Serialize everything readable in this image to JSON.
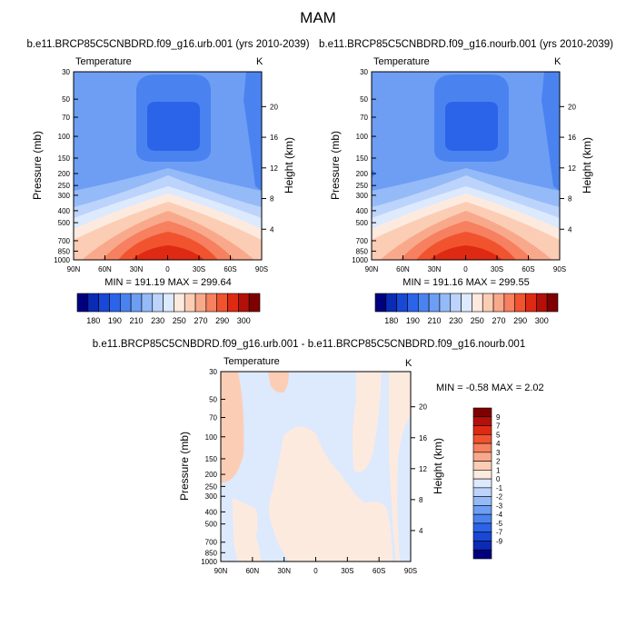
{
  "main_title": "MAM",
  "colors": {
    "abs": [
      "#00007f",
      "#0a2bb4",
      "#1947d6",
      "#2b64e8",
      "#4a83f0",
      "#6d9ef4",
      "#95baf8",
      "#bcd4fb",
      "#dde9fd",
      "#fdeadf",
      "#fccdb5",
      "#f9a98b",
      "#f6805f",
      "#f1532f",
      "#de2a12",
      "#b4100a",
      "#7f0000"
    ],
    "diff": [
      "#00007f",
      "#0a2bb4",
      "#1947d6",
      "#2b64e8",
      "#4a83f0",
      "#6d9ef4",
      "#95baf8",
      "#bcd4fb",
      "#dde9fd",
      "#fdeadf",
      "#fccdb5",
      "#f9a98b",
      "#f6805f",
      "#f1532f",
      "#de2a12",
      "#b4100a",
      "#7f0000"
    ]
  },
  "chart_data": [
    {
      "type": "heatmap",
      "panel": "urb",
      "title": "b.e11.BRCP85C5CNBDRD.f09_g16.urb.001 (yrs 2010-2039)",
      "left_label": "Temperature",
      "right_label": "K",
      "ylabel": "Pressure (mb)",
      "ylabel_right": "Height (km)",
      "yticks": [
        "30",
        "50",
        "70",
        "100",
        "150",
        "200",
        "250",
        "300",
        "400",
        "500",
        "700",
        "850",
        "1000"
      ],
      "right_ticks": [
        "20",
        "16",
        "12",
        "8",
        "4"
      ],
      "xticks": [
        "90N",
        "60N",
        "30N",
        "0",
        "30S",
        "60S",
        "90S"
      ],
      "stats": "MIN = 191.19   MAX = 299.64",
      "colorbar_labels": [
        "180",
        "190",
        "210",
        "230",
        "250",
        "270",
        "290",
        "300"
      ]
    },
    {
      "type": "heatmap",
      "panel": "nourb",
      "title": "b.e11.BRCP85C5CNBDRD.f09_g16.nourb.001 (yrs 2010-2039)",
      "left_label": "Temperature",
      "right_label": "K",
      "ylabel": "Pressure (mb)",
      "ylabel_right": "Height (km)",
      "yticks": [
        "30",
        "50",
        "70",
        "100",
        "150",
        "200",
        "250",
        "300",
        "400",
        "500",
        "700",
        "850",
        "1000"
      ],
      "right_ticks": [
        "20",
        "16",
        "12",
        "8",
        "4"
      ],
      "xticks": [
        "90N",
        "60N",
        "30N",
        "0",
        "30S",
        "60S",
        "90S"
      ],
      "stats": "MIN = 191.16   MAX = 299.55",
      "colorbar_labels": [
        "180",
        "190",
        "210",
        "230",
        "250",
        "270",
        "290",
        "300"
      ]
    },
    {
      "type": "heatmap",
      "panel": "diff",
      "title": "b.e11.BRCP85C5CNBDRD.f09_g16.urb.001 - b.e11.BRCP85C5CNBDRD.f09_g16.nourb.001",
      "left_label": "Temperature",
      "right_label": "K",
      "ylabel": "Pressure (mb)",
      "ylabel_right": "Height (km)",
      "yticks": [
        "30",
        "50",
        "70",
        "100",
        "150",
        "200",
        "250",
        "300",
        "400",
        "500",
        "700",
        "850",
        "1000"
      ],
      "right_ticks": [
        "20",
        "16",
        "12",
        "8",
        "4"
      ],
      "xticks": [
        "90N",
        "60N",
        "30N",
        "0",
        "30S",
        "60S",
        "90S"
      ],
      "stats": "MIN =  -0.58  MAX =   2.02",
      "colorbar_labels": [
        "9",
        "7",
        "5",
        "4",
        "3",
        "2",
        "1",
        "0",
        "-1",
        "-2",
        "-3",
        "-4",
        "-5",
        "-7",
        "-9"
      ]
    }
  ]
}
